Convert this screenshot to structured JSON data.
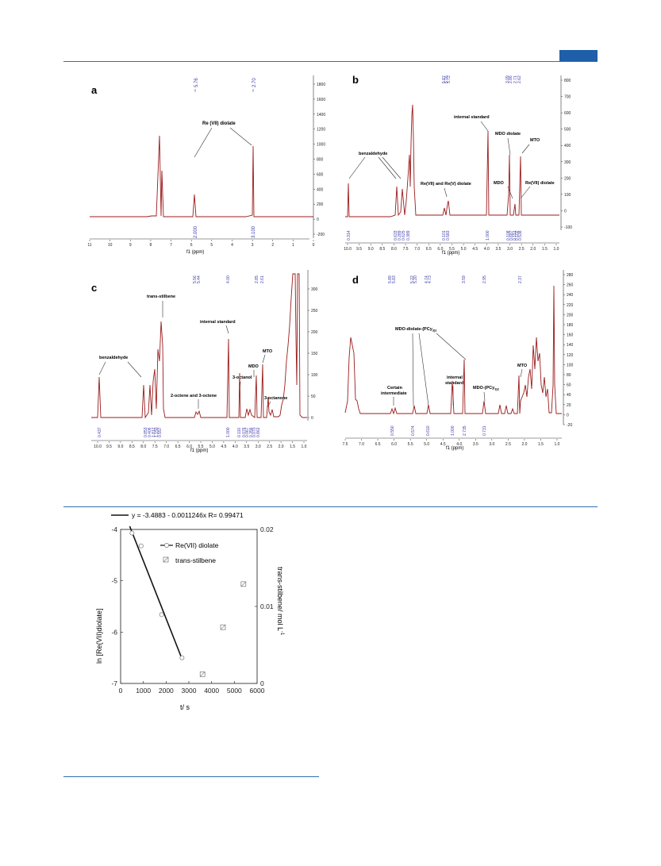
{
  "colors": {
    "rule": "#2f6fb0",
    "tab": "#1f5fa9",
    "spectrum": "#9b1b1b",
    "label_blue": "#3b3bab",
    "kinetic_line": "#111111"
  },
  "panels": {
    "a": {
      "letter": "a",
      "annotation": "Re (VII) diolate",
      "peak_labels": [
        "5.76",
        "2.70"
      ],
      "integrals": [
        "2.000",
        "3.100"
      ],
      "axis_title": "f1 (ppm)",
      "x_ticks": [
        "11",
        "10",
        "9",
        "8",
        "7",
        "6",
        "5",
        "4",
        "3",
        "2",
        "1",
        "0"
      ],
      "y_ticks": [
        "1800",
        "1600",
        "1400",
        "1200",
        "1000",
        "800",
        "600",
        "400",
        "200",
        "0",
        "-200"
      ]
    },
    "b": {
      "letter": "b",
      "annotations": {
        "benzaldehyde": "benzaldehyde",
        "internal": "internal  standard",
        "rediolate": "Re(VII) and Re(V) diolate",
        "mdo_diolate": "MDO diolate",
        "mto": "MTO",
        "mdo": "MDO",
        "re7": "Re(VII) diolate"
      },
      "peak_labels": [
        "5.87",
        "5.76",
        "5.72",
        "3.09",
        "2.86",
        "2.71",
        "2.62"
      ],
      "integrals": [
        "0.314",
        "0.633",
        "0.289",
        "0.625",
        "0.389",
        "0.101",
        "0.583",
        "1.000",
        "0.108",
        "0.687",
        "0.151",
        "0.102",
        "0.538"
      ],
      "axis_title": "f1 (ppm)",
      "x_ticks": [
        "10.0",
        "9.5",
        "9.0",
        "8.5",
        "8.0",
        "7.5",
        "7.0",
        "6.5",
        "6.0",
        "5.5",
        "5.0",
        "4.5",
        "4.0",
        "3.5",
        "3.0",
        "2.5",
        "2.0",
        "1.5",
        "1.0"
      ],
      "y_ticks": [
        "800",
        "700",
        "600",
        "500",
        "400",
        "300",
        "200",
        "100",
        "0",
        "-100"
      ]
    },
    "c": {
      "letter": "c",
      "annotations": {
        "stilbene": "trans-stilbene",
        "benzaldehyde": "benzaldehyde",
        "internal": "internal standard",
        "octanol": "3-octanol",
        "mdo": "MDO",
        "mto": "MTO",
        "octanone": "3-octanone",
        "octene": "2-octene and 3-octene"
      },
      "peak_labels": [
        "5.56",
        "5.44",
        "4.00",
        "2.85",
        "2.61"
      ],
      "integrals": [
        "0.437",
        "0.853",
        "0.406",
        "1.812",
        "1.150",
        "0.557",
        "1.000",
        "0.110",
        "0.076",
        "0.067",
        "0.356",
        "0.070",
        "0.862"
      ],
      "axis_title": "f1 (ppm)",
      "x_ticks": [
        "10.0",
        "9.5",
        "9.0",
        "8.5",
        "8.0",
        "7.5",
        "7.0",
        "6.5",
        "6.0",
        "5.5",
        "5.0",
        "4.5",
        "4.0",
        "3.5",
        "3.0",
        "2.5",
        "2.0",
        "1.5",
        "1.0"
      ],
      "y_ticks": [
        "300",
        "250",
        "200",
        "150",
        "100",
        "50",
        "0"
      ]
    },
    "d": {
      "letter": "d",
      "annotations": {
        "diolate": "MDO-diolate-(PCy",
        "diolate_sub": "3)2",
        "certain1": "Certain",
        "certain2": "intermediate",
        "internal1": "internal",
        "internal2": "standard",
        "mdo": "MDO-(PCy",
        "mdo_sub": "3)2",
        "mto": "MTO"
      },
      "peak_labels": [
        "5.89",
        "5.83",
        "5.22",
        "5.20",
        "4.74",
        "4.73",
        "3.59",
        "2.95",
        "2.37"
      ],
      "integrals": [
        "0.550",
        "0.574",
        "0.610",
        "1.000",
        "2.735",
        "0.731"
      ],
      "axis_title": "f1 (ppm)",
      "x_ticks": [
        "7.5",
        "7.0",
        "6.5",
        "6.0",
        "5.5",
        "5.0",
        "4.5",
        "4.0",
        "3.5",
        "3.0",
        "2.5",
        "2.0",
        "1.5",
        "1.0"
      ],
      "y_ticks": [
        "280",
        "260",
        "240",
        "220",
        "200",
        "180",
        "160",
        "140",
        "120",
        "100",
        "80",
        "60",
        "40",
        "20",
        "0",
        "-20"
      ]
    }
  },
  "kinetics": {
    "fit_legend": "y = -3.4883 - 0.0011246x   R= 0.99471",
    "series_a": "Re(VII) diolate",
    "series_b": "trans-stilbene",
    "ylabel_left": "ln [Re(VII)diolate]",
    "ylabel_right": "trans-stilbene/ mol L",
    "ylabel_right_sup": "-1",
    "xlabel": "t/ s",
    "x_ticks": [
      "0",
      "1000",
      "2000",
      "3000",
      "4000",
      "5000",
      "6000"
    ],
    "y_left_ticks": [
      "-4",
      "-5",
      "-6",
      "-7"
    ],
    "y_right_ticks": [
      "0.02",
      "0.01",
      "0"
    ]
  },
  "chart_data": {
    "type": "scatter",
    "title": "",
    "xlabel": "t/ s",
    "ylabel": "ln [Re(VII)diolate]",
    "y2label": "trans-stilbene/ mol L-1",
    "xlim": [
      0,
      6000
    ],
    "ylim": [
      -7,
      -4
    ],
    "y2lim": [
      0,
      0.02
    ],
    "series": [
      {
        "name": "Re(VII) diolate",
        "axis": "left",
        "marker": "circle",
        "x": [
          500,
          900,
          1800,
          2700
        ],
        "y": [
          -4.07,
          -4.32,
          -5.66,
          -6.5
        ]
      },
      {
        "name": "trans-stilbene",
        "axis": "right",
        "marker": "hatched-square",
        "x": [
          3600,
          4500,
          5400
        ],
        "y": [
          0.0012,
          0.0073,
          0.0129
        ]
      }
    ],
    "fit": {
      "slope": -0.0011246,
      "intercept": -3.4883,
      "R": 0.99471,
      "x_range": [
        400,
        2700
      ]
    }
  }
}
